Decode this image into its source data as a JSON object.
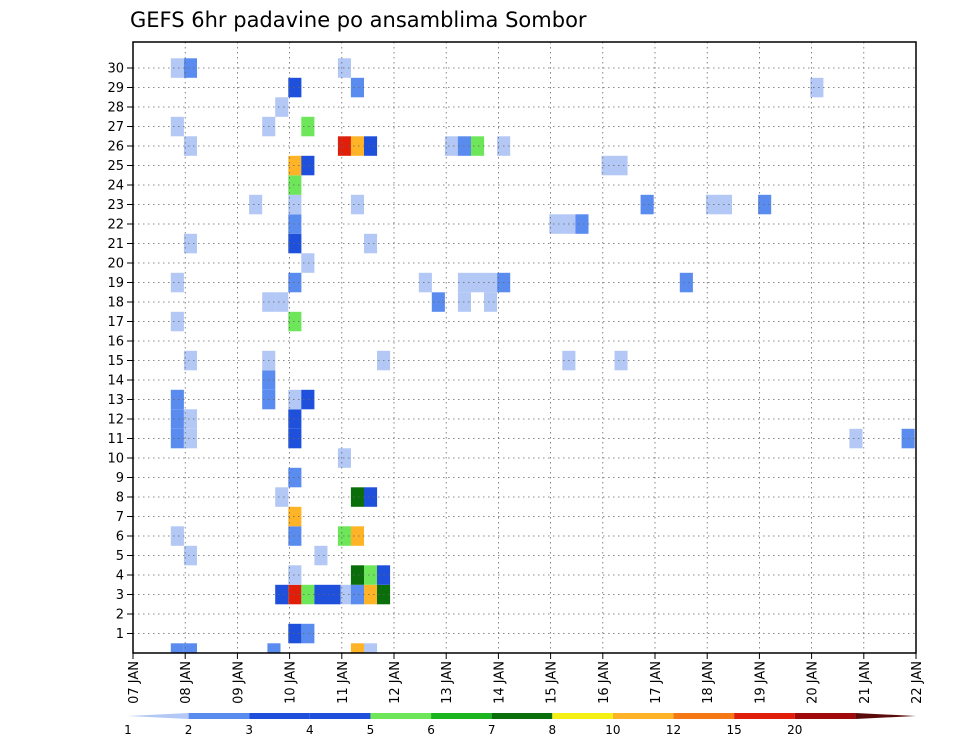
{
  "chart_data": {
    "type": "heatmap",
    "title": "GEFS 6hr padavine po ansamblima Sombor",
    "xlabel": "",
    "ylabel": "",
    "x_ticks": [
      "07 JAN",
      "08 JAN",
      "09 JAN",
      "10 JAN",
      "11 JAN",
      "12 JAN",
      "13 JAN",
      "14 JAN",
      "15 JAN",
      "16 JAN",
      "17 JAN",
      "18 JAN",
      "19 JAN",
      "20 JAN",
      "21 JAN",
      "22 JAN"
    ],
    "y_ticks": [
      "1",
      "2",
      "3",
      "4",
      "5",
      "6",
      "7",
      "8",
      "9",
      "10",
      "11",
      "12",
      "13",
      "14",
      "15",
      "16",
      "17",
      "18",
      "19",
      "20",
      "21",
      "22",
      "23",
      "24",
      "25",
      "26",
      "27",
      "28",
      "29",
      "30"
    ],
    "grid": true,
    "colorbar": {
      "labels": [
        "1",
        "2",
        "3",
        "4",
        "5",
        "6",
        "7",
        "8",
        "10",
        "12",
        "15",
        "20"
      ],
      "colors": [
        "#b4c8f5",
        "#5a8cf0",
        "#1e50dc",
        "#1e50dc",
        "#6ee65a",
        "#19b41e",
        "#0a6e0a",
        "#f5f014",
        "#ffb428",
        "#f57814",
        "#e11e0a",
        "#a00a0a",
        "#5a0a0a"
      ]
    },
    "cells": [
      {
        "day": 7.85,
        "member": 0,
        "level": 2
      },
      {
        "day": 8.1,
        "member": 0,
        "level": 2
      },
      {
        "day": 9.7,
        "member": 0,
        "level": 2
      },
      {
        "day": 11.3,
        "member": 0,
        "level": 10
      },
      {
        "day": 11.55,
        "member": 0,
        "level": 1
      },
      {
        "day": 10.1,
        "member": 1,
        "level": 3
      },
      {
        "day": 10.35,
        "member": 1,
        "level": 2
      },
      {
        "day": 9.85,
        "member": 3,
        "level": 3
      },
      {
        "day": 10.1,
        "member": 3,
        "level": 15
      },
      {
        "day": 10.35,
        "member": 3,
        "level": 5
      },
      {
        "day": 10.6,
        "member": 3,
        "level": 3
      },
      {
        "day": 10.85,
        "member": 3,
        "level": 3
      },
      {
        "day": 11.1,
        "member": 3,
        "level": 1
      },
      {
        "day": 11.3,
        "member": 3,
        "level": 2
      },
      {
        "day": 11.55,
        "member": 3,
        "level": 10
      },
      {
        "day": 11.8,
        "member": 3,
        "level": 7
      },
      {
        "day": 10.1,
        "member": 4,
        "level": 1
      },
      {
        "day": 11.3,
        "member": 4,
        "level": 7
      },
      {
        "day": 11.55,
        "member": 4,
        "level": 5
      },
      {
        "day": 11.8,
        "member": 4,
        "level": 3
      },
      {
        "day": 8.1,
        "member": 5,
        "level": 1
      },
      {
        "day": 10.6,
        "member": 5,
        "level": 1
      },
      {
        "day": 7.85,
        "member": 6,
        "level": 1
      },
      {
        "day": 10.1,
        "member": 6,
        "level": 2
      },
      {
        "day": 11.05,
        "member": 6,
        "level": 5
      },
      {
        "day": 11.3,
        "member": 6,
        "level": 10
      },
      {
        "day": 10.1,
        "member": 7,
        "level": 10
      },
      {
        "day": 9.85,
        "member": 8,
        "level": 1
      },
      {
        "day": 11.3,
        "member": 8,
        "level": 7
      },
      {
        "day": 11.55,
        "member": 8,
        "level": 3
      },
      {
        "day": 10.1,
        "member": 9,
        "level": 2
      },
      {
        "day": 11.05,
        "member": 10,
        "level": 1
      },
      {
        "day": 7.85,
        "member": 11,
        "level": 2
      },
      {
        "day": 8.1,
        "member": 11,
        "level": 1
      },
      {
        "day": 10.1,
        "member": 11,
        "level": 3
      },
      {
        "day": 20.85,
        "member": 11,
        "level": 1
      },
      {
        "day": 21.85,
        "member": 11,
        "level": 2
      },
      {
        "day": 7.85,
        "member": 12,
        "level": 2
      },
      {
        "day": 8.1,
        "member": 12,
        "level": 1
      },
      {
        "day": 10.1,
        "member": 12,
        "level": 3
      },
      {
        "day": 7.85,
        "member": 13,
        "level": 2
      },
      {
        "day": 9.6,
        "member": 13,
        "level": 2
      },
      {
        "day": 10.1,
        "member": 13,
        "level": 1
      },
      {
        "day": 10.35,
        "member": 13,
        "level": 3
      },
      {
        "day": 9.6,
        "member": 14,
        "level": 2
      },
      {
        "day": 8.1,
        "member": 15,
        "level": 1
      },
      {
        "day": 9.6,
        "member": 15,
        "level": 1
      },
      {
        "day": 11.8,
        "member": 15,
        "level": 1
      },
      {
        "day": 15.35,
        "member": 15,
        "level": 1
      },
      {
        "day": 16.35,
        "member": 15,
        "level": 1
      },
      {
        "day": 7.85,
        "member": 17,
        "level": 1
      },
      {
        "day": 10.1,
        "member": 17,
        "level": 5
      },
      {
        "day": 9.6,
        "member": 18,
        "level": 1
      },
      {
        "day": 9.85,
        "member": 18,
        "level": 1
      },
      {
        "day": 12.85,
        "member": 18,
        "level": 2
      },
      {
        "day": 13.35,
        "member": 18,
        "level": 1
      },
      {
        "day": 13.85,
        "member": 18,
        "level": 1
      },
      {
        "day": 7.85,
        "member": 19,
        "level": 1
      },
      {
        "day": 10.1,
        "member": 19,
        "level": 2
      },
      {
        "day": 12.6,
        "member": 19,
        "level": 1
      },
      {
        "day": 13.35,
        "member": 19,
        "level": 1
      },
      {
        "day": 13.6,
        "member": 19,
        "level": 1
      },
      {
        "day": 13.85,
        "member": 19,
        "level": 1
      },
      {
        "day": 14.1,
        "member": 19,
        "level": 2
      },
      {
        "day": 17.6,
        "member": 19,
        "level": 2
      },
      {
        "day": 10.35,
        "member": 20,
        "level": 1
      },
      {
        "day": 8.1,
        "member": 21,
        "level": 1
      },
      {
        "day": 10.1,
        "member": 21,
        "level": 3
      },
      {
        "day": 11.55,
        "member": 21,
        "level": 1
      },
      {
        "day": 10.1,
        "member": 22,
        "level": 2
      },
      {
        "day": 15.1,
        "member": 22,
        "level": 1
      },
      {
        "day": 15.35,
        "member": 22,
        "level": 1
      },
      {
        "day": 15.6,
        "member": 22,
        "level": 2
      },
      {
        "day": 9.35,
        "member": 23,
        "level": 1
      },
      {
        "day": 10.1,
        "member": 23,
        "level": 1
      },
      {
        "day": 11.3,
        "member": 23,
        "level": 1
      },
      {
        "day": 16.85,
        "member": 23,
        "level": 2
      },
      {
        "day": 18.1,
        "member": 23,
        "level": 1
      },
      {
        "day": 18.35,
        "member": 23,
        "level": 1
      },
      {
        "day": 19.1,
        "member": 23,
        "level": 2
      },
      {
        "day": 10.1,
        "member": 24,
        "level": 5
      },
      {
        "day": 10.1,
        "member": 25,
        "level": 10
      },
      {
        "day": 10.35,
        "member": 25,
        "level": 3
      },
      {
        "day": 16.1,
        "member": 25,
        "level": 1
      },
      {
        "day": 16.35,
        "member": 25,
        "level": 1
      },
      {
        "day": 8.1,
        "member": 26,
        "level": 1
      },
      {
        "day": 11.05,
        "member": 26,
        "level": 15
      },
      {
        "day": 11.3,
        "member": 26,
        "level": 10
      },
      {
        "day": 11.55,
        "member": 26,
        "level": 3
      },
      {
        "day": 13.1,
        "member": 26,
        "level": 1
      },
      {
        "day": 13.35,
        "member": 26,
        "level": 2
      },
      {
        "day": 13.6,
        "member": 26,
        "level": 5
      },
      {
        "day": 14.1,
        "member": 26,
        "level": 1
      },
      {
        "day": 7.85,
        "member": 27,
        "level": 1
      },
      {
        "day": 9.6,
        "member": 27,
        "level": 1
      },
      {
        "day": 10.35,
        "member": 27,
        "level": 5
      },
      {
        "day": 9.85,
        "member": 28,
        "level": 1
      },
      {
        "day": 10.1,
        "member": 29,
        "level": 3
      },
      {
        "day": 11.3,
        "member": 29,
        "level": 2
      },
      {
        "day": 20.1,
        "member": 29,
        "level": 1
      },
      {
        "day": 7.85,
        "member": 30,
        "level": 1
      },
      {
        "day": 8.1,
        "member": 30,
        "level": 2
      },
      {
        "day": 11.05,
        "member": 30,
        "level": 1
      }
    ]
  }
}
